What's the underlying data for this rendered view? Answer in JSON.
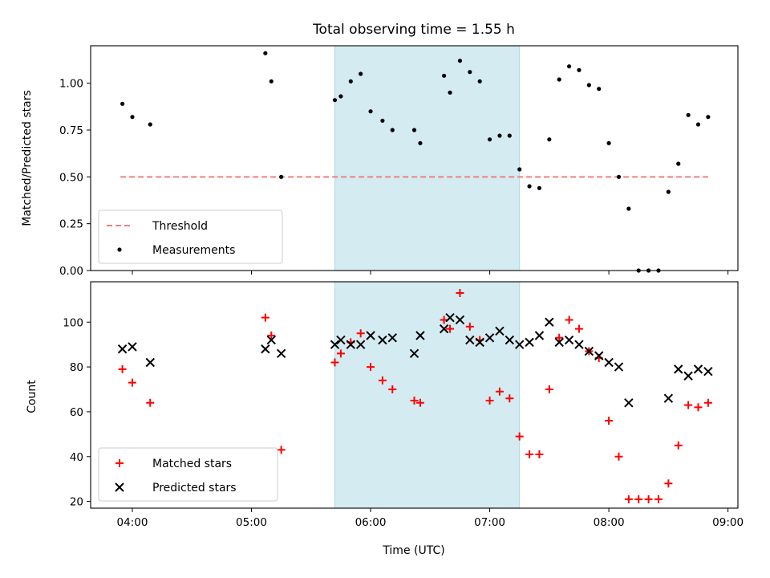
{
  "chart_data": [
    {
      "type": "scatter",
      "title": "Total observing time = 1.55 h",
      "ylabel": "Matched/Predicted stars",
      "xlabel": "",
      "xlim": [
        "03:39",
        "09:05"
      ],
      "ylim": [
        0,
        1.2
      ],
      "xticks": [
        "04:00",
        "05:00",
        "06:00",
        "07:00",
        "08:00",
        "09:00"
      ],
      "xtick_labels_visible": false,
      "yticks": [
        "0.00",
        "0.25",
        "0.50",
        "0.75",
        "1.00"
      ],
      "shaded_interval": {
        "start": "05:42",
        "end": "07:15",
        "color": "#add8e6"
      },
      "threshold": {
        "value": 0.5,
        "x_start": "03:54",
        "x_end": "08:50",
        "color": "#f08080"
      },
      "legend": {
        "location": "lower left",
        "entries": [
          "Threshold",
          "Measurements"
        ]
      },
      "series": [
        {
          "name": "Measurements",
          "marker": "dot",
          "color": "#000000",
          "points": [
            [
              "03:55",
              0.89
            ],
            [
              "04:00",
              0.82
            ],
            [
              "04:09",
              0.78
            ],
            [
              "05:07",
              1.16
            ],
            [
              "05:10",
              1.01
            ],
            [
              "05:15",
              0.5
            ],
            [
              "05:42",
              0.91
            ],
            [
              "05:45",
              0.93
            ],
            [
              "05:50",
              1.01
            ],
            [
              "05:55",
              1.05
            ],
            [
              "06:00",
              0.85
            ],
            [
              "06:06",
              0.8
            ],
            [
              "06:11",
              0.75
            ],
            [
              "06:22",
              0.75
            ],
            [
              "06:25",
              0.68
            ],
            [
              "06:37",
              1.04
            ],
            [
              "06:40",
              0.95
            ],
            [
              "06:45",
              1.12
            ],
            [
              "06:50",
              1.06
            ],
            [
              "06:55",
              1.01
            ],
            [
              "07:00",
              0.7
            ],
            [
              "07:05",
              0.72
            ],
            [
              "07:10",
              0.72
            ],
            [
              "07:15",
              0.54
            ],
            [
              "07:20",
              0.45
            ],
            [
              "07:25",
              0.44
            ],
            [
              "07:30",
              0.7
            ],
            [
              "07:35",
              1.02
            ],
            [
              "07:40",
              1.09
            ],
            [
              "07:45",
              1.07
            ],
            [
              "07:50",
              0.99
            ],
            [
              "07:55",
              0.97
            ],
            [
              "08:00",
              0.68
            ],
            [
              "08:05",
              0.5
            ],
            [
              "08:10",
              0.33
            ],
            [
              "08:15",
              0.0
            ],
            [
              "08:20",
              0.0
            ],
            [
              "08:25",
              0.0
            ],
            [
              "08:30",
              0.42
            ],
            [
              "08:35",
              0.57
            ],
            [
              "08:40",
              0.83
            ],
            [
              "08:45",
              0.78
            ],
            [
              "08:50",
              0.82
            ]
          ]
        }
      ]
    },
    {
      "type": "scatter",
      "title": "",
      "ylabel": "Count",
      "xlabel": "Time (UTC)",
      "xlim": [
        "03:39",
        "09:05"
      ],
      "ylim": [
        17,
        118
      ],
      "xticks": [
        "04:00",
        "05:00",
        "06:00",
        "07:00",
        "08:00",
        "09:00"
      ],
      "yticks": [
        "20",
        "40",
        "60",
        "80",
        "100"
      ],
      "shaded_interval": {
        "start": "05:42",
        "end": "07:15",
        "color": "#add8e6"
      },
      "legend": {
        "location": "lower left",
        "entries": [
          "Matched stars",
          "Predicted stars"
        ]
      },
      "series": [
        {
          "name": "Matched stars",
          "marker": "plus",
          "color": "#ff0000",
          "points": [
            [
              "03:55",
              79
            ],
            [
              "04:00",
              73
            ],
            [
              "04:09",
              64
            ],
            [
              "05:07",
              102
            ],
            [
              "05:10",
              94
            ],
            [
              "05:15",
              43
            ],
            [
              "05:42",
              82
            ],
            [
              "05:45",
              86
            ],
            [
              "05:50",
              91
            ],
            [
              "05:55",
              95
            ],
            [
              "06:00",
              80
            ],
            [
              "06:06",
              74
            ],
            [
              "06:11",
              70
            ],
            [
              "06:22",
              65
            ],
            [
              "06:25",
              64
            ],
            [
              "06:37",
              101
            ],
            [
              "06:40",
              97
            ],
            [
              "06:45",
              113
            ],
            [
              "06:50",
              98
            ],
            [
              "06:55",
              92
            ],
            [
              "07:00",
              65
            ],
            [
              "07:05",
              69
            ],
            [
              "07:10",
              66
            ],
            [
              "07:15",
              49
            ],
            [
              "07:20",
              41
            ],
            [
              "07:25",
              41
            ],
            [
              "07:30",
              70
            ],
            [
              "07:35",
              93
            ],
            [
              "07:40",
              101
            ],
            [
              "07:45",
              97
            ],
            [
              "07:50",
              87
            ],
            [
              "07:55",
              84
            ],
            [
              "08:00",
              56
            ],
            [
              "08:05",
              40
            ],
            [
              "08:10",
              21
            ],
            [
              "08:15",
              21
            ],
            [
              "08:20",
              21
            ],
            [
              "08:25",
              21
            ],
            [
              "08:30",
              28
            ],
            [
              "08:35",
              45
            ],
            [
              "08:40",
              63
            ],
            [
              "08:45",
              62
            ],
            [
              "08:50",
              64
            ]
          ]
        },
        {
          "name": "Predicted stars",
          "marker": "x",
          "color": "#000000",
          "points": [
            [
              "03:55",
              88
            ],
            [
              "04:00",
              89
            ],
            [
              "04:09",
              82
            ],
            [
              "05:07",
              88
            ],
            [
              "05:10",
              92
            ],
            [
              "05:15",
              86
            ],
            [
              "05:42",
              90
            ],
            [
              "05:45",
              92
            ],
            [
              "05:50",
              90
            ],
            [
              "05:55",
              90
            ],
            [
              "06:00",
              94
            ],
            [
              "06:06",
              92
            ],
            [
              "06:11",
              93
            ],
            [
              "06:22",
              86
            ],
            [
              "06:25",
              94
            ],
            [
              "06:37",
              97
            ],
            [
              "06:40",
              102
            ],
            [
              "06:45",
              101
            ],
            [
              "06:50",
              92
            ],
            [
              "06:55",
              91
            ],
            [
              "07:00",
              93
            ],
            [
              "07:05",
              96
            ],
            [
              "07:10",
              92
            ],
            [
              "07:15",
              90
            ],
            [
              "07:20",
              91
            ],
            [
              "07:25",
              94
            ],
            [
              "07:30",
              100
            ],
            [
              "07:35",
              91
            ],
            [
              "07:40",
              92
            ],
            [
              "07:45",
              90
            ],
            [
              "07:50",
              87
            ],
            [
              "07:55",
              85
            ],
            [
              "08:00",
              82
            ],
            [
              "08:05",
              80
            ],
            [
              "08:10",
              64
            ],
            [
              "08:30",
              66
            ],
            [
              "08:35",
              79
            ],
            [
              "08:40",
              76
            ],
            [
              "08:45",
              79
            ],
            [
              "08:50",
              78
            ]
          ]
        }
      ]
    }
  ]
}
